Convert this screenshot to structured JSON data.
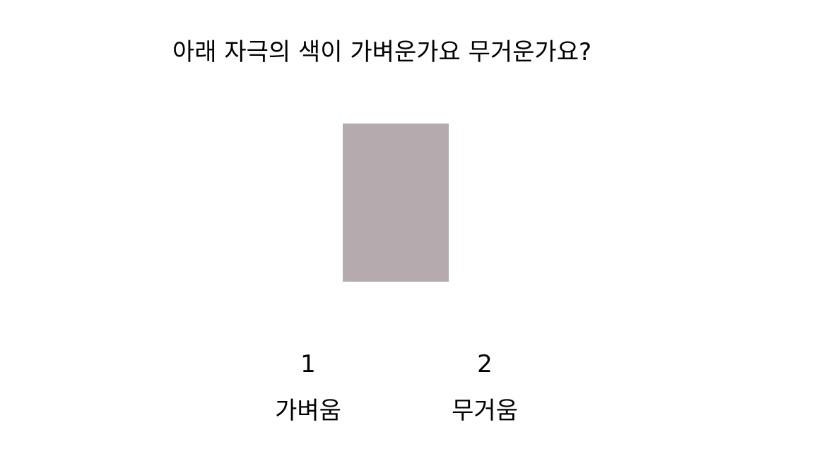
{
  "question": "아래 자극의 색이 가벼운가요 무거운가요?",
  "stimulus": {
    "color": "#b5aaae"
  },
  "options": [
    {
      "key": "1",
      "label": "가벼움"
    },
    {
      "key": "2",
      "label": "무거움"
    }
  ]
}
